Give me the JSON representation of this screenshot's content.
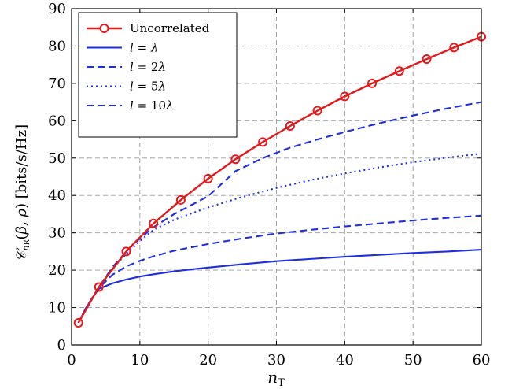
{
  "chart_data": {
    "type": "line",
    "xlabel": "n_T",
    "ylabel": "C_{n_R}(β, ρ) [bits/s/Hz]",
    "xlim": [
      0,
      60
    ],
    "ylim": [
      0,
      90
    ],
    "xticks": [
      0,
      10,
      20,
      30,
      40,
      50,
      60
    ],
    "yticks": [
      0,
      10,
      20,
      30,
      40,
      50,
      60,
      70,
      80,
      90
    ],
    "grid": true,
    "legend_position": "top-left",
    "series": [
      {
        "name": "Uncorrelated",
        "color": "#e31a1c",
        "style": "solid",
        "marker": "circle",
        "x": [
          1,
          4,
          8,
          12,
          16,
          20,
          24,
          28,
          32,
          36,
          40,
          44,
          48,
          52,
          56,
          60
        ],
        "y": [
          5.9,
          15.5,
          25.0,
          32.5,
          38.8,
          44.5,
          49.7,
          54.3,
          58.6,
          62.7,
          66.5,
          70.0,
          73.3,
          76.5,
          79.6,
          82.5
        ]
      },
      {
        "name": "l = λ",
        "color": "#1f2fe0",
        "style": "solid",
        "marker": "none",
        "x": [
          1,
          2,
          3,
          4,
          6,
          8,
          10,
          12,
          15,
          20,
          25,
          30,
          35,
          40,
          45,
          50,
          55,
          60
        ],
        "y": [
          5.9,
          9.5,
          12.5,
          15.0,
          16.5,
          17.5,
          18.3,
          18.9,
          19.7,
          20.7,
          21.6,
          22.4,
          23.0,
          23.6,
          24.1,
          24.6,
          25.0,
          25.5
        ]
      },
      {
        "name": "l = 2λ",
        "color": "#1f2fe0",
        "style": "dashed",
        "marker": "none",
        "x": [
          1,
          2,
          3,
          4,
          6,
          8,
          10,
          12,
          15,
          20,
          25,
          30,
          35,
          40,
          45,
          50,
          55,
          60
        ],
        "y": [
          5.9,
          9.5,
          12.5,
          15.2,
          18.8,
          21.0,
          22.5,
          23.7,
          25.2,
          27.0,
          28.5,
          29.8,
          30.8,
          31.7,
          32.5,
          33.3,
          34.0,
          34.6
        ]
      },
      {
        "name": "l = 5λ",
        "color": "#1f2fe0",
        "style": "dotted",
        "marker": "none",
        "x": [
          1,
          2,
          3,
          4,
          6,
          8,
          10,
          12,
          15,
          20,
          25,
          30,
          35,
          40,
          45,
          50,
          55,
          60
        ],
        "y": [
          5.9,
          9.5,
          12.5,
          15.4,
          20.5,
          24.3,
          27.8,
          30.8,
          33.5,
          36.8,
          39.6,
          42.0,
          44.1,
          45.9,
          47.5,
          48.9,
          50.1,
          51.2
        ]
      },
      {
        "name": "l = 10λ",
        "color": "#1f2fe0",
        "style": "dashed",
        "marker": "none",
        "x": [
          1,
          2,
          3,
          4,
          6,
          8,
          10,
          12,
          15,
          20,
          24,
          28,
          32,
          36,
          40,
          45,
          50,
          55,
          60
        ],
        "y": [
          5.9,
          9.5,
          12.5,
          15.5,
          20.8,
          25.0,
          28.5,
          31.5,
          35.0,
          39.8,
          46.5,
          50.0,
          52.8,
          55.0,
          57.0,
          59.3,
          61.4,
          63.3,
          65.0
        ]
      }
    ]
  }
}
